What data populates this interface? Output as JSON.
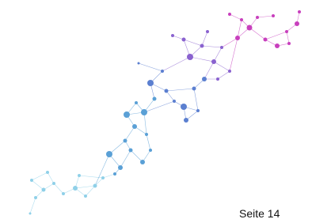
{
  "page_number": "Seite 14"
}
